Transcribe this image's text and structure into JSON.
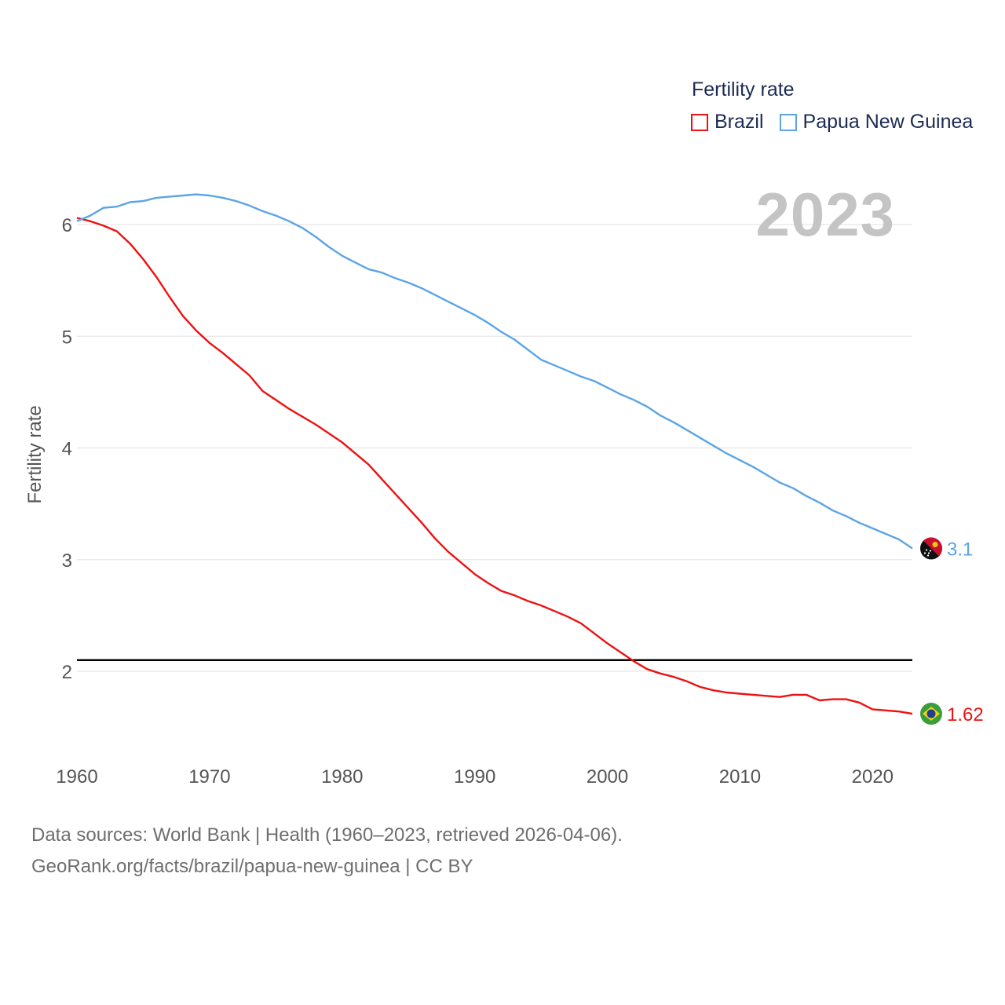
{
  "chart_data": {
    "type": "line",
    "title": "",
    "ylabel": "Fertility rate",
    "xlabel": "",
    "xlim": [
      1960,
      2023
    ],
    "ylim": [
      1.5,
      6.3
    ],
    "x_ticks": [
      1960,
      1970,
      1980,
      1990,
      2000,
      2010,
      2020
    ],
    "y_ticks": [
      2,
      3,
      4,
      5,
      6
    ],
    "reference_line": 2.1,
    "year_watermark": "2023",
    "legend_title": "Fertility rate",
    "series": [
      {
        "name": "Brazil",
        "color": "#ee1111",
        "end_label": "1.62",
        "flag": "brazil-flag-icon",
        "points": [
          [
            1960,
            6.06
          ],
          [
            1961,
            6.03
          ],
          [
            1962,
            5.99
          ],
          [
            1963,
            5.94
          ],
          [
            1964,
            5.83
          ],
          [
            1965,
            5.69
          ],
          [
            1966,
            5.53
          ],
          [
            1967,
            5.35
          ],
          [
            1968,
            5.18
          ],
          [
            1969,
            5.05
          ],
          [
            1970,
            4.94
          ],
          [
            1971,
            4.85
          ],
          [
            1972,
            4.75
          ],
          [
            1973,
            4.65
          ],
          [
            1974,
            4.51
          ],
          [
            1975,
            4.43
          ],
          [
            1976,
            4.35
          ],
          [
            1977,
            4.28
          ],
          [
            1978,
            4.21
          ],
          [
            1979,
            4.13
          ],
          [
            1980,
            4.05
          ],
          [
            1981,
            3.95
          ],
          [
            1982,
            3.85
          ],
          [
            1983,
            3.72
          ],
          [
            1984,
            3.59
          ],
          [
            1985,
            3.46
          ],
          [
            1986,
            3.33
          ],
          [
            1987,
            3.19
          ],
          [
            1988,
            3.07
          ],
          [
            1989,
            2.97
          ],
          [
            1990,
            2.87
          ],
          [
            1991,
            2.79
          ],
          [
            1992,
            2.72
          ],
          [
            1993,
            2.68
          ],
          [
            1994,
            2.63
          ],
          [
            1995,
            2.59
          ],
          [
            1996,
            2.54
          ],
          [
            1997,
            2.49
          ],
          [
            1998,
            2.43
          ],
          [
            1999,
            2.34
          ],
          [
            2000,
            2.25
          ],
          [
            2001,
            2.17
          ],
          [
            2002,
            2.09
          ],
          [
            2003,
            2.02
          ],
          [
            2004,
            1.98
          ],
          [
            2005,
            1.95
          ],
          [
            2006,
            1.91
          ],
          [
            2007,
            1.86
          ],
          [
            2008,
            1.83
          ],
          [
            2009,
            1.81
          ],
          [
            2010,
            1.8
          ],
          [
            2011,
            1.79
          ],
          [
            2012,
            1.78
          ],
          [
            2013,
            1.77
          ],
          [
            2014,
            1.79
          ],
          [
            2015,
            1.79
          ],
          [
            2016,
            1.74
          ],
          [
            2017,
            1.75
          ],
          [
            2018,
            1.75
          ],
          [
            2019,
            1.72
          ],
          [
            2020,
            1.66
          ],
          [
            2021,
            1.65
          ],
          [
            2022,
            1.64
          ],
          [
            2023,
            1.62
          ]
        ]
      },
      {
        "name": "Papua New Guinea",
        "color": "#5ba4e6",
        "end_label": "3.1",
        "flag": "papua-new-guinea-flag-icon",
        "points": [
          [
            1960,
            6.03
          ],
          [
            1961,
            6.08
          ],
          [
            1962,
            6.15
          ],
          [
            1963,
            6.16
          ],
          [
            1964,
            6.2
          ],
          [
            1965,
            6.21
          ],
          [
            1966,
            6.24
          ],
          [
            1967,
            6.25
          ],
          [
            1968,
            6.26
          ],
          [
            1969,
            6.27
          ],
          [
            1970,
            6.26
          ],
          [
            1971,
            6.24
          ],
          [
            1972,
            6.21
          ],
          [
            1973,
            6.17
          ],
          [
            1974,
            6.12
          ],
          [
            1975,
            6.08
          ],
          [
            1976,
            6.03
          ],
          [
            1977,
            5.97
          ],
          [
            1978,
            5.89
          ],
          [
            1979,
            5.8
          ],
          [
            1980,
            5.72
          ],
          [
            1981,
            5.66
          ],
          [
            1982,
            5.6
          ],
          [
            1983,
            5.57
          ],
          [
            1984,
            5.52
          ],
          [
            1985,
            5.48
          ],
          [
            1986,
            5.43
          ],
          [
            1987,
            5.37
          ],
          [
            1988,
            5.31
          ],
          [
            1989,
            5.25
          ],
          [
            1990,
            5.19
          ],
          [
            1991,
            5.12
          ],
          [
            1992,
            5.04
          ],
          [
            1993,
            4.97
          ],
          [
            1994,
            4.88
          ],
          [
            1995,
            4.79
          ],
          [
            1996,
            4.74
          ],
          [
            1997,
            4.69
          ],
          [
            1998,
            4.64
          ],
          [
            1999,
            4.6
          ],
          [
            2000,
            4.54
          ],
          [
            2001,
            4.48
          ],
          [
            2002,
            4.43
          ],
          [
            2003,
            4.37
          ],
          [
            2004,
            4.29
          ],
          [
            2005,
            4.23
          ],
          [
            2006,
            4.16
          ],
          [
            2007,
            4.09
          ],
          [
            2008,
            4.02
          ],
          [
            2009,
            3.95
          ],
          [
            2010,
            3.89
          ],
          [
            2011,
            3.83
          ],
          [
            2012,
            3.76
          ],
          [
            2013,
            3.69
          ],
          [
            2014,
            3.64
          ],
          [
            2015,
            3.57
          ],
          [
            2016,
            3.51
          ],
          [
            2017,
            3.44
          ],
          [
            2018,
            3.39
          ],
          [
            2019,
            3.33
          ],
          [
            2020,
            3.28
          ],
          [
            2021,
            3.23
          ],
          [
            2022,
            3.18
          ],
          [
            2023,
            3.1
          ]
        ]
      }
    ]
  },
  "footer": {
    "source_line": "Data sources: World Bank | Health (1960–2023, retrieved 2026-04-06).",
    "url_line": "GeoRank.org/facts/brazil/papua-new-guinea | CC BY"
  }
}
